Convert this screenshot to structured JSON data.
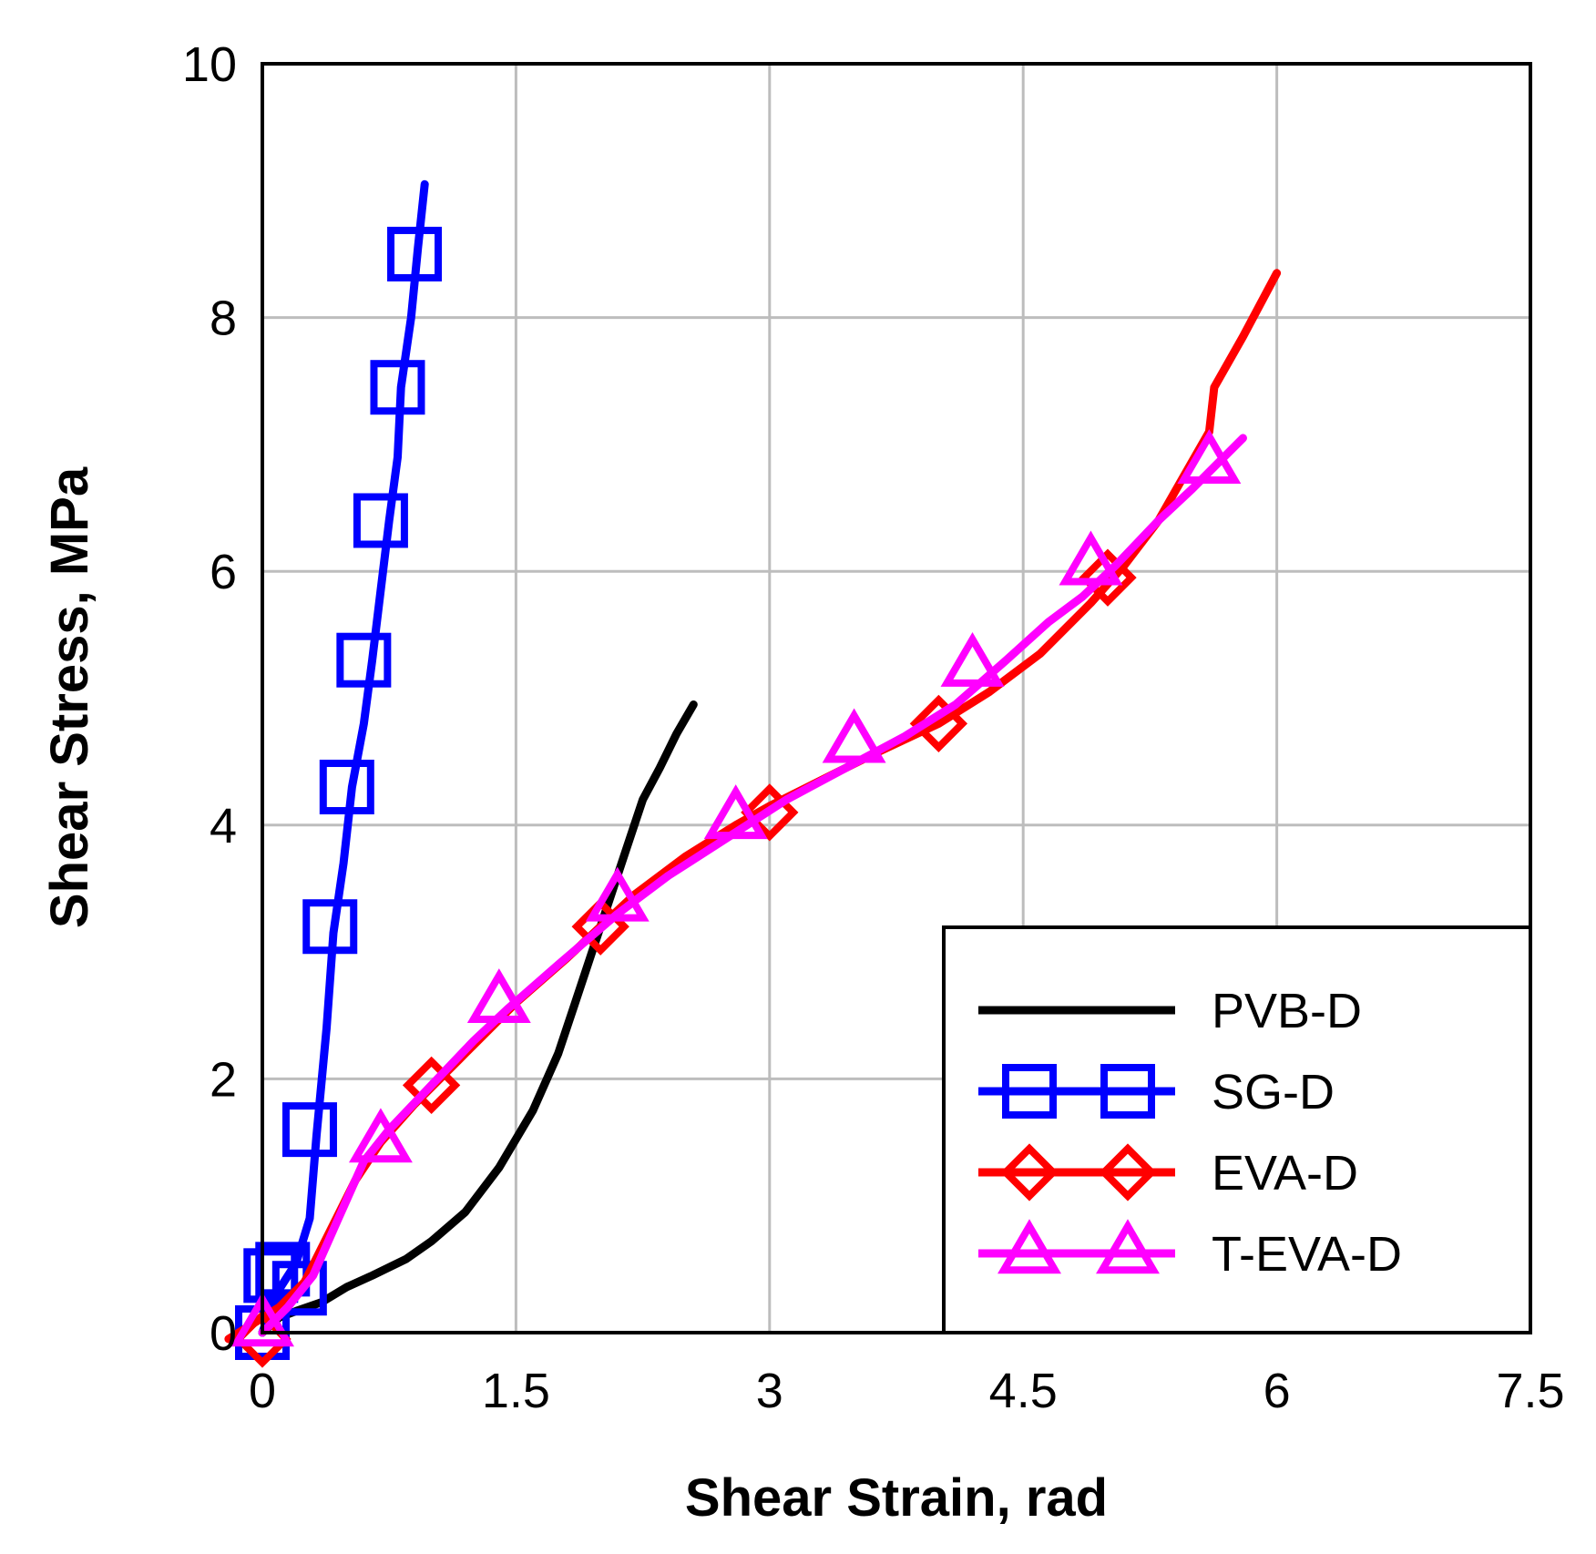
{
  "chart_data": {
    "type": "line",
    "xlabel": "Shear Strain, rad",
    "ylabel": "Shear Stress, MPa",
    "xlim": [
      0,
      7.5
    ],
    "ylim": [
      0,
      10
    ],
    "xticks": [
      "0",
      "1.5",
      "3",
      "4.5",
      "6",
      "7.5"
    ],
    "xtick_values": [
      0,
      1.5,
      3,
      4.5,
      6,
      7.5
    ],
    "yticks": [
      "0",
      "2",
      "4",
      "6",
      "8",
      "10"
    ],
    "ytick_values": [
      0,
      2,
      4,
      6,
      8,
      10
    ],
    "grid": true,
    "legend_position": "bottom-right",
    "series": [
      {
        "name": "PVB-D",
        "color": "#000000",
        "marker": "none",
        "points": [
          [
            0,
            0
          ],
          [
            0.1,
            0.12
          ],
          [
            0.2,
            0.17
          ],
          [
            0.35,
            0.24
          ],
          [
            0.5,
            0.36
          ],
          [
            0.65,
            0.45
          ],
          [
            0.85,
            0.58
          ],
          [
            1.0,
            0.72
          ],
          [
            1.2,
            0.95
          ],
          [
            1.4,
            1.3
          ],
          [
            1.6,
            1.75
          ],
          [
            1.75,
            2.2
          ],
          [
            1.85,
            2.6
          ],
          [
            1.95,
            3.0
          ],
          [
            2.05,
            3.4
          ],
          [
            2.15,
            3.8
          ],
          [
            2.25,
            4.2
          ],
          [
            2.35,
            4.45
          ],
          [
            2.45,
            4.72
          ],
          [
            2.55,
            4.95
          ]
        ],
        "markers": []
      },
      {
        "name": "SG-D",
        "color": "#0000FF",
        "marker": "square",
        "points": [
          [
            0,
            0
          ],
          [
            0.08,
            0.3
          ],
          [
            0.2,
            0.55
          ],
          [
            0.28,
            0.9
          ],
          [
            0.32,
            1.55
          ],
          [
            0.38,
            2.4
          ],
          [
            0.42,
            3.15
          ],
          [
            0.48,
            3.7
          ],
          [
            0.53,
            4.3
          ],
          [
            0.6,
            4.8
          ],
          [
            0.65,
            5.3
          ],
          [
            0.7,
            5.85
          ],
          [
            0.75,
            6.4
          ],
          [
            0.8,
            6.9
          ],
          [
            0.82,
            7.45
          ],
          [
            0.88,
            8.0
          ],
          [
            0.92,
            8.55
          ],
          [
            0.96,
            9.05
          ]
        ],
        "markers": [
          [
            0,
            0
          ],
          [
            0.05,
            0.45
          ],
          [
            0.12,
            0.5
          ],
          [
            0.22,
            0.35
          ],
          [
            0.28,
            1.6
          ],
          [
            0.4,
            3.2
          ],
          [
            0.5,
            4.3
          ],
          [
            0.6,
            5.3
          ],
          [
            0.7,
            6.4
          ],
          [
            0.8,
            7.45
          ],
          [
            0.9,
            8.5
          ]
        ]
      },
      {
        "name": "EVA-D",
        "color": "#FF0000",
        "marker": "diamond",
        "points": [
          [
            -0.2,
            -0.05
          ],
          [
            0.1,
            0.2
          ],
          [
            0.25,
            0.4
          ],
          [
            0.4,
            0.8
          ],
          [
            0.55,
            1.2
          ],
          [
            0.7,
            1.5
          ],
          [
            0.9,
            1.8
          ],
          [
            1.2,
            2.2
          ],
          [
            1.5,
            2.6
          ],
          [
            1.8,
            2.95
          ],
          [
            2.0,
            3.2
          ],
          [
            2.2,
            3.45
          ],
          [
            2.5,
            3.75
          ],
          [
            2.8,
            4.0
          ],
          [
            3.0,
            4.15
          ],
          [
            3.3,
            4.35
          ],
          [
            3.6,
            4.55
          ],
          [
            4.0,
            4.8
          ],
          [
            4.3,
            5.05
          ],
          [
            4.6,
            5.35
          ],
          [
            4.9,
            5.75
          ],
          [
            5.1,
            6.05
          ],
          [
            5.3,
            6.4
          ],
          [
            5.45,
            6.75
          ],
          [
            5.6,
            7.1
          ],
          [
            5.63,
            7.45
          ],
          [
            5.8,
            7.85
          ],
          [
            6.0,
            8.35
          ]
        ],
        "markers": [
          [
            0,
            -0.05
          ],
          [
            1.0,
            1.95
          ],
          [
            2.0,
            3.2
          ],
          [
            3.0,
            4.1
          ],
          [
            4.0,
            4.8
          ],
          [
            5.0,
            5.95
          ]
        ]
      },
      {
        "name": "T-EVA-D",
        "color": "#FF00FF",
        "marker": "triangle",
        "points": [
          [
            0,
            0
          ],
          [
            0.15,
            0.2
          ],
          [
            0.3,
            0.45
          ],
          [
            0.45,
            0.9
          ],
          [
            0.6,
            1.35
          ],
          [
            0.75,
            1.6
          ],
          [
            1.0,
            1.95
          ],
          [
            1.25,
            2.3
          ],
          [
            1.45,
            2.55
          ],
          [
            1.75,
            2.9
          ],
          [
            2.1,
            3.3
          ],
          [
            2.4,
            3.6
          ],
          [
            2.75,
            3.9
          ],
          [
            3.1,
            4.2
          ],
          [
            3.45,
            4.45
          ],
          [
            3.8,
            4.7
          ],
          [
            4.1,
            4.95
          ],
          [
            4.4,
            5.3
          ],
          [
            4.65,
            5.6
          ],
          [
            4.85,
            5.8
          ],
          [
            5.05,
            6.05
          ],
          [
            5.3,
            6.4
          ],
          [
            5.5,
            6.65
          ],
          [
            5.65,
            6.85
          ],
          [
            5.8,
            7.05
          ]
        ],
        "markers": [
          [
            0,
            0.05
          ],
          [
            0.7,
            1.5
          ],
          [
            1.4,
            2.6
          ],
          [
            2.1,
            3.4
          ],
          [
            2.8,
            4.05
          ],
          [
            3.5,
            4.65
          ],
          [
            4.2,
            5.25
          ],
          [
            4.9,
            6.05
          ],
          [
            5.6,
            6.85
          ]
        ]
      }
    ]
  }
}
